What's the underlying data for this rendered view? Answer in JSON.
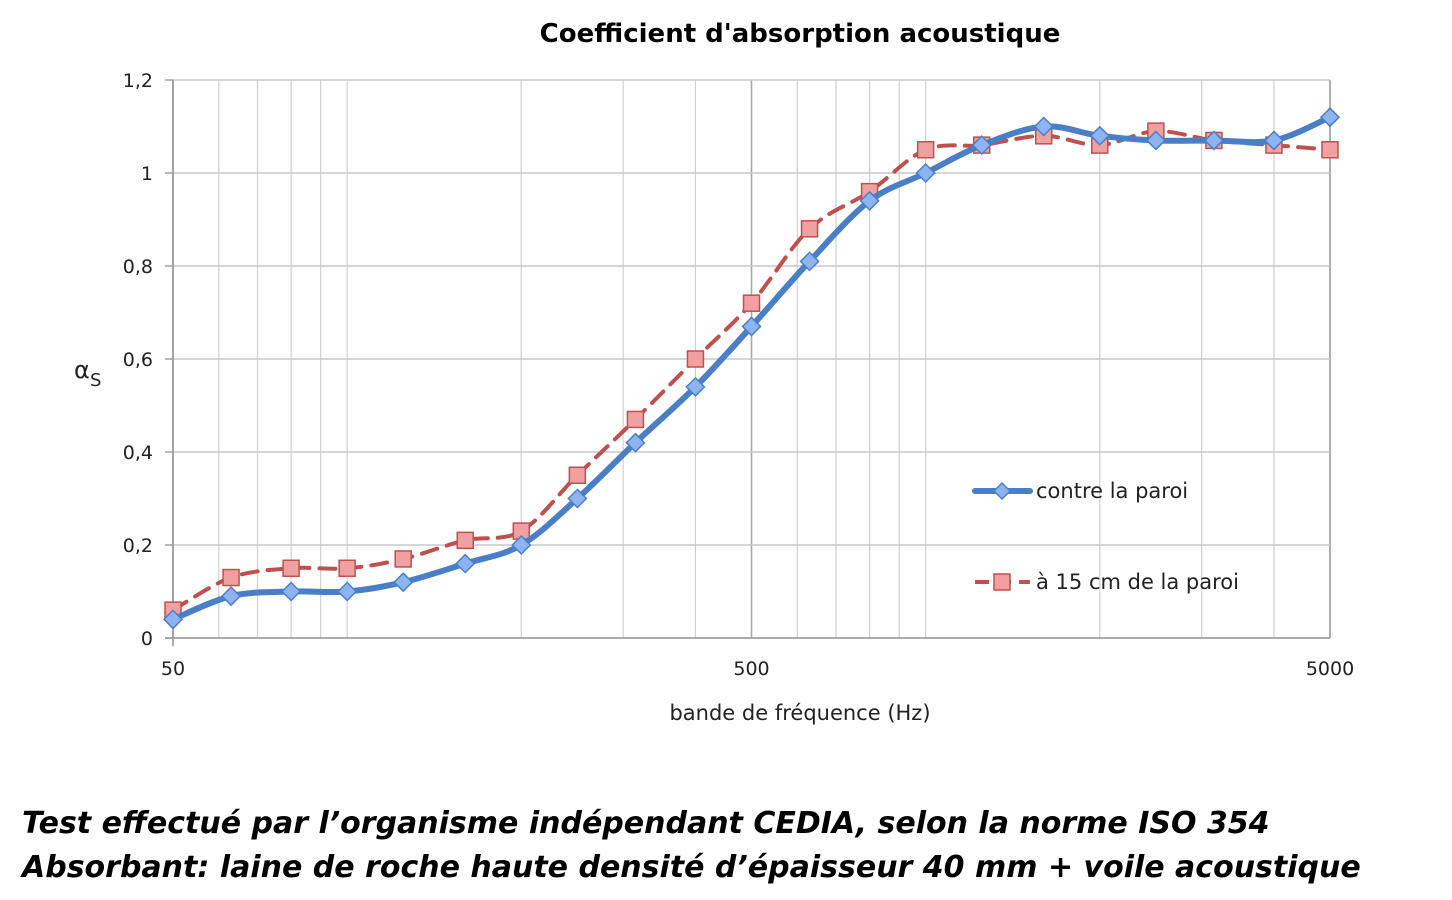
{
  "caption": {
    "line1": "Test effectué par l’organisme indépendant CEDIA, selon la norme ISO 354",
    "line2": "Absorbant: laine de roche haute densité d’épaisseur 40 mm + voile acoustique"
  },
  "chart_data": {
    "type": "line",
    "title": "Coefficient d'absorption acoustique",
    "xlabel": "bande de fréquence (Hz)",
    "ylabel": "α",
    "ylabel_sub": "S",
    "xscale": "log",
    "xlim": [
      50,
      5000
    ],
    "ylim": [
      0,
      1.2
    ],
    "x_ticks": [
      50,
      500,
      5000
    ],
    "x_tick_labels": [
      "50",
      "500",
      "5000"
    ],
    "y_ticks": [
      0,
      0.2,
      0.4,
      0.6,
      0.8,
      1,
      1.2
    ],
    "y_tick_labels": [
      "0",
      "0,2",
      "0,4",
      "0,6",
      "0,8",
      "1",
      "1,2"
    ],
    "grid": true,
    "legend_position": "right",
    "x": [
      50,
      63,
      80,
      100,
      125,
      160,
      200,
      250,
      315,
      400,
      500,
      630,
      800,
      1000,
      1250,
      1600,
      2000,
      2500,
      3150,
      4000,
      5000
    ],
    "series": [
      {
        "name": "contre la paroi",
        "color": "#4a7fc8",
        "marker": "diamond",
        "marker_color": "#8db4f0",
        "line_style": "solid",
        "values": [
          0.04,
          0.09,
          0.1,
          0.1,
          0.12,
          0.16,
          0.2,
          0.3,
          0.42,
          0.54,
          0.67,
          0.81,
          0.94,
          1.0,
          1.06,
          1.1,
          1.08,
          1.07,
          1.07,
          1.07,
          1.12
        ]
      },
      {
        "name": "à 15 cm de la paroi",
        "color": "#c0504d",
        "marker": "square",
        "marker_color": "#f0a0a0",
        "line_style": "dashed",
        "values": [
          0.06,
          0.13,
          0.15,
          0.15,
          0.17,
          0.21,
          0.23,
          0.35,
          0.47,
          0.6,
          0.72,
          0.88,
          0.96,
          1.05,
          1.06,
          1.08,
          1.06,
          1.09,
          1.07,
          1.06,
          1.05
        ]
      }
    ]
  }
}
